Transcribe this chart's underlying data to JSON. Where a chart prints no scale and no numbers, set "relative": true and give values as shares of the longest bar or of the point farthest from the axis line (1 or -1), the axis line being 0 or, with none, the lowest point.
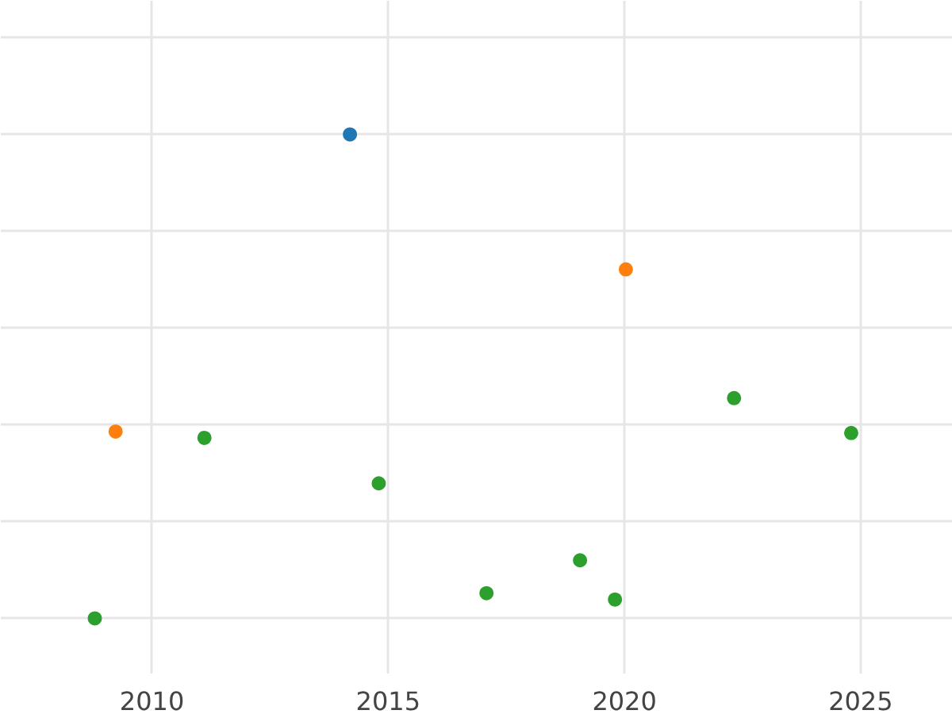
{
  "chart_data": {
    "type": "scatter",
    "relative": true,
    "marker": "circle",
    "grid": true,
    "xlim": [
      2006.8,
      2026.95
    ],
    "xticks": [
      2010,
      2015,
      2020,
      2025
    ],
    "series": [
      {
        "color": "#1f77b4",
        "x": [
          2014.19
        ],
        "values": [
          1
        ]
      },
      {
        "color": "#ff7f0e",
        "x": [
          2020.03,
          2009.23
        ],
        "values": [
          0.721,
          0.386
        ]
      },
      {
        "color": "#2ca02c",
        "x": [
          2011.11,
          2014.8,
          2008.79,
          2017.08,
          2019.06,
          2019.8,
          2022.32,
          2024.8
        ],
        "values": [
          0.373,
          0.279,
          0,
          0.052,
          0.12,
          0.039,
          0.455,
          0.383
        ]
      }
    ]
  }
}
